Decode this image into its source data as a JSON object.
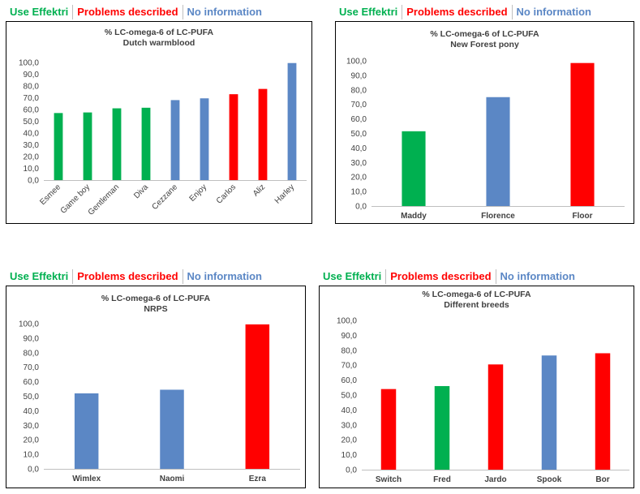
{
  "legend": {
    "use_effektri": "Use Effektri",
    "problems_described": "Problems described",
    "no_information": "No information"
  },
  "colors": {
    "use_effektri": "#00b050",
    "problems_described": "#ff0000",
    "no_information": "#5b87c5"
  },
  "chart_data": [
    {
      "type": "bar",
      "title": "% LC-omega-6 of LC-PUFA",
      "subtitle": "Dutch warmblood",
      "categories": [
        "Esmee",
        "Game boy",
        "Gentleman",
        "Diva",
        "Cezzane",
        "Enjoy",
        "Carlos",
        "Aliz",
        "Harley"
      ],
      "values": [
        57.0,
        57.5,
        61.0,
        61.5,
        68.0,
        69.5,
        73.0,
        77.5,
        99.5
      ],
      "groups": [
        "use_effektri",
        "use_effektri",
        "use_effektri",
        "use_effektri",
        "no_information",
        "no_information",
        "problems_described",
        "problems_described",
        "no_information"
      ],
      "ylim": [
        0,
        100
      ],
      "yticks": [
        "0,0",
        "10,0",
        "20,0",
        "30,0",
        "40,0",
        "50,0",
        "60,0",
        "70,0",
        "80,0",
        "90,0",
        "100,0"
      ],
      "xlabel": "",
      "ylabel": ""
    },
    {
      "type": "bar",
      "title": "% LC-omega-6 of LC-PUFA",
      "subtitle": "New Forest pony",
      "categories": [
        "Maddy",
        "Florence",
        "Floor"
      ],
      "values": [
        51.5,
        75.0,
        98.5
      ],
      "groups": [
        "use_effektri",
        "no_information",
        "problems_described"
      ],
      "ylim": [
        0,
        100
      ],
      "yticks": [
        "0,0",
        "10,0",
        "20,0",
        "30,0",
        "40,0",
        "50,0",
        "60,0",
        "70,0",
        "80,0",
        "90,0",
        "100,0"
      ],
      "xlabel": "",
      "ylabel": ""
    },
    {
      "type": "bar",
      "title": "% LC-omega-6 of LC-PUFA",
      "subtitle": "NRPS",
      "categories": [
        "Wimlex",
        "Naomi",
        "Ezra"
      ],
      "values": [
        52.0,
        54.5,
        99.5
      ],
      "groups": [
        "no_information",
        "no_information",
        "problems_described"
      ],
      "ylim": [
        0,
        100
      ],
      "yticks": [
        "0,0",
        "10,0",
        "20,0",
        "30,0",
        "40,0",
        "50,0",
        "60,0",
        "70,0",
        "80,0",
        "90,0",
        "100,0"
      ],
      "xlabel": "",
      "ylabel": ""
    },
    {
      "type": "bar",
      "title": "% LC-omega-6 of LC-PUFA",
      "subtitle": "Different breeds",
      "categories": [
        "Switch",
        "Fred",
        "Jardo",
        "Spook",
        "Bor"
      ],
      "values": [
        54.0,
        56.0,
        70.5,
        76.5,
        78.0
      ],
      "groups": [
        "problems_described",
        "use_effektri",
        "problems_described",
        "no_information",
        "problems_described"
      ],
      "ylim": [
        0,
        100
      ],
      "yticks": [
        "0,0",
        "10,0",
        "20,0",
        "30,0",
        "40,0",
        "50,0",
        "60,0",
        "70,0",
        "80,0",
        "90,0",
        "100,0"
      ],
      "xlabel": "",
      "ylabel": ""
    }
  ]
}
